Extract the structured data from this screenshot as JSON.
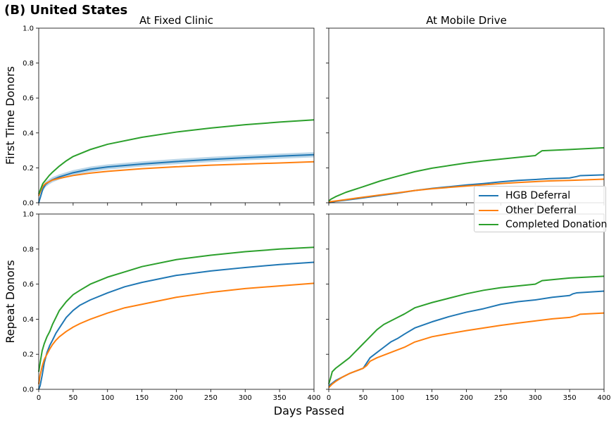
{
  "figure": {
    "title": "(B) United States",
    "xlabel": "Days Passed",
    "legend": {
      "placement": "right",
      "entries": [
        {
          "name": "HGB Deferral",
          "color": "#1f77b4"
        },
        {
          "name": "Other Deferral",
          "color": "#ff7f0e"
        },
        {
          "name": "Completed Donation",
          "color": "#2ca02c"
        }
      ]
    }
  },
  "chart_data": [
    {
      "type": "line",
      "title": "At Fixed Clinic",
      "ylabel": "First Time Donors",
      "xlim": [
        0,
        400
      ],
      "ylim": [
        0,
        1
      ],
      "xticks": [
        "0",
        "50",
        "100",
        "150",
        "200",
        "250",
        "300",
        "350",
        "400"
      ],
      "yticks": [
        "0.0",
        "0.2",
        "0.4",
        "0.6",
        "0.8",
        "1.0"
      ],
      "show_x_ticklabels": false,
      "show_y_ticklabels": true,
      "series": [
        {
          "name": "HGB Deferral",
          "color": "#1f77b4",
          "band": 0.015,
          "x": [
            0,
            3,
            6,
            10,
            15,
            20,
            30,
            40,
            50,
            75,
            100,
            150,
            200,
            250,
            300,
            350,
            400
          ],
          "y": [
            0,
            0.04,
            0.08,
            0.105,
            0.12,
            0.132,
            0.148,
            0.16,
            0.172,
            0.192,
            0.205,
            0.222,
            0.236,
            0.248,
            0.258,
            0.267,
            0.275
          ]
        },
        {
          "name": "Other Deferral",
          "color": "#ff7f0e",
          "x": [
            0,
            3,
            6,
            10,
            15,
            20,
            30,
            40,
            50,
            75,
            100,
            150,
            200,
            250,
            300,
            350,
            400
          ],
          "y": [
            0.04,
            0.07,
            0.095,
            0.11,
            0.12,
            0.13,
            0.14,
            0.148,
            0.156,
            0.17,
            0.18,
            0.195,
            0.206,
            0.215,
            0.222,
            0.228,
            0.235
          ]
        },
        {
          "name": "Completed Donation",
          "color": "#2ca02c",
          "x": [
            0,
            3,
            6,
            10,
            15,
            20,
            30,
            40,
            50,
            75,
            100,
            150,
            200,
            250,
            300,
            350,
            400
          ],
          "y": [
            0.05,
            0.08,
            0.11,
            0.13,
            0.155,
            0.175,
            0.21,
            0.24,
            0.265,
            0.305,
            0.335,
            0.375,
            0.405,
            0.428,
            0.447,
            0.462,
            0.475
          ]
        }
      ]
    },
    {
      "type": "line",
      "title": "At Mobile Drive",
      "ylabel": "",
      "xlim": [
        0,
        400
      ],
      "ylim": [
        0,
        1
      ],
      "xticks": [
        "0",
        "50",
        "100",
        "150",
        "200",
        "250",
        "300",
        "350",
        "400"
      ],
      "yticks": [
        "0.0",
        "0.2",
        "0.4",
        "0.6",
        "0.8",
        "1.0"
      ],
      "show_x_ticklabels": false,
      "show_y_ticklabels": false,
      "series": [
        {
          "name": "HGB Deferral",
          "color": "#1f77b4",
          "x": [
            0,
            10,
            25,
            50,
            75,
            100,
            125,
            150,
            175,
            200,
            225,
            250,
            275,
            300,
            320,
            350,
            360,
            365,
            400
          ],
          "y": [
            0,
            0.008,
            0.015,
            0.028,
            0.042,
            0.055,
            0.07,
            0.082,
            0.092,
            0.102,
            0.11,
            0.12,
            0.128,
            0.133,
            0.138,
            0.142,
            0.15,
            0.155,
            0.16
          ]
        },
        {
          "name": "Other Deferral",
          "color": "#ff7f0e",
          "x": [
            0,
            10,
            25,
            50,
            75,
            100,
            125,
            150,
            175,
            200,
            225,
            250,
            275,
            300,
            320,
            350,
            365,
            400
          ],
          "y": [
            0.005,
            0.01,
            0.018,
            0.032,
            0.045,
            0.057,
            0.07,
            0.08,
            0.088,
            0.096,
            0.103,
            0.11,
            0.116,
            0.121,
            0.125,
            0.128,
            0.13,
            0.135
          ]
        },
        {
          "name": "Completed Donation",
          "color": "#2ca02c",
          "x": [
            0,
            3,
            10,
            25,
            50,
            75,
            100,
            125,
            150,
            175,
            200,
            225,
            250,
            275,
            300,
            305,
            310,
            350,
            400
          ],
          "y": [
            0.01,
            0.02,
            0.035,
            0.06,
            0.092,
            0.125,
            0.152,
            0.178,
            0.198,
            0.213,
            0.228,
            0.24,
            0.25,
            0.26,
            0.27,
            0.285,
            0.298,
            0.305,
            0.315
          ]
        }
      ]
    },
    {
      "type": "line",
      "title": "",
      "ylabel": "Repeat Donors",
      "xlim": [
        0,
        400
      ],
      "ylim": [
        0,
        1
      ],
      "xticks": [
        "0",
        "50",
        "100",
        "150",
        "200",
        "250",
        "300",
        "350",
        "400"
      ],
      "yticks": [
        "0.0",
        "0.2",
        "0.4",
        "0.6",
        "0.8",
        "1.0"
      ],
      "show_x_ticklabels": true,
      "show_y_ticklabels": true,
      "series": [
        {
          "name": "HGB Deferral",
          "color": "#1f77b4",
          "x": [
            0,
            2,
            5,
            8,
            12,
            16,
            20,
            25,
            30,
            40,
            50,
            60,
            75,
            100,
            125,
            150,
            200,
            250,
            300,
            350,
            400
          ],
          "y": [
            0,
            0.02,
            0.08,
            0.15,
            0.21,
            0.25,
            0.28,
            0.32,
            0.35,
            0.41,
            0.45,
            0.48,
            0.51,
            0.55,
            0.585,
            0.61,
            0.65,
            0.675,
            0.695,
            0.712,
            0.725
          ]
        },
        {
          "name": "Other Deferral",
          "color": "#ff7f0e",
          "x": [
            0,
            2,
            5,
            8,
            12,
            16,
            20,
            25,
            30,
            40,
            50,
            60,
            75,
            100,
            125,
            150,
            200,
            250,
            300,
            350,
            400
          ],
          "y": [
            0.03,
            0.08,
            0.13,
            0.17,
            0.2,
            0.23,
            0.255,
            0.28,
            0.3,
            0.33,
            0.355,
            0.375,
            0.4,
            0.435,
            0.465,
            0.485,
            0.525,
            0.553,
            0.575,
            0.59,
            0.605
          ]
        },
        {
          "name": "Completed Donation",
          "color": "#2ca02c",
          "x": [
            0,
            2,
            5,
            8,
            12,
            16,
            20,
            25,
            30,
            40,
            50,
            60,
            75,
            100,
            125,
            150,
            200,
            250,
            300,
            350,
            400
          ],
          "y": [
            0.1,
            0.15,
            0.22,
            0.26,
            0.3,
            0.33,
            0.37,
            0.41,
            0.45,
            0.5,
            0.54,
            0.565,
            0.6,
            0.64,
            0.67,
            0.7,
            0.74,
            0.765,
            0.785,
            0.8,
            0.81
          ]
        }
      ]
    },
    {
      "type": "line",
      "title": "",
      "ylabel": "",
      "xlim": [
        0,
        400
      ],
      "ylim": [
        0,
        1
      ],
      "xticks": [
        "0",
        "50",
        "100",
        "150",
        "200",
        "250",
        "300",
        "350",
        "400"
      ],
      "yticks": [
        "0.0",
        "0.2",
        "0.4",
        "0.6",
        "0.8",
        "1.0"
      ],
      "show_x_ticklabels": true,
      "show_y_ticklabels": false,
      "series": [
        {
          "name": "HGB Deferral",
          "color": "#1f77b4",
          "x": [
            0,
            5,
            10,
            20,
            30,
            40,
            50,
            55,
            60,
            70,
            80,
            90,
            100,
            110,
            125,
            150,
            175,
            200,
            225,
            250,
            275,
            300,
            325,
            350,
            355,
            360,
            400
          ],
          "y": [
            0.02,
            0.035,
            0.05,
            0.07,
            0.09,
            0.105,
            0.12,
            0.15,
            0.18,
            0.21,
            0.24,
            0.27,
            0.29,
            0.315,
            0.35,
            0.385,
            0.415,
            0.44,
            0.46,
            0.485,
            0.5,
            0.51,
            0.525,
            0.535,
            0.545,
            0.55,
            0.56
          ]
        },
        {
          "name": "Other Deferral",
          "color": "#ff7f0e",
          "x": [
            0,
            5,
            10,
            20,
            30,
            40,
            50,
            55,
            60,
            70,
            80,
            90,
            100,
            110,
            125,
            150,
            175,
            200,
            225,
            250,
            275,
            300,
            325,
            350,
            360,
            365,
            400
          ],
          "y": [
            0.01,
            0.03,
            0.045,
            0.07,
            0.09,
            0.105,
            0.12,
            0.135,
            0.16,
            0.18,
            0.195,
            0.21,
            0.225,
            0.24,
            0.27,
            0.3,
            0.318,
            0.335,
            0.35,
            0.365,
            0.378,
            0.39,
            0.402,
            0.41,
            0.42,
            0.428,
            0.435
          ]
        },
        {
          "name": "Completed Donation",
          "color": "#2ca02c",
          "x": [
            0,
            3,
            5,
            10,
            20,
            30,
            40,
            50,
            55,
            60,
            70,
            80,
            90,
            100,
            110,
            125,
            150,
            175,
            200,
            225,
            250,
            275,
            300,
            305,
            310,
            350,
            400
          ],
          "y": [
            0.03,
            0.07,
            0.1,
            0.12,
            0.15,
            0.18,
            0.22,
            0.26,
            0.28,
            0.3,
            0.34,
            0.37,
            0.39,
            0.41,
            0.43,
            0.465,
            0.495,
            0.52,
            0.545,
            0.565,
            0.58,
            0.59,
            0.6,
            0.61,
            0.62,
            0.635,
            0.645
          ]
        }
      ]
    }
  ]
}
